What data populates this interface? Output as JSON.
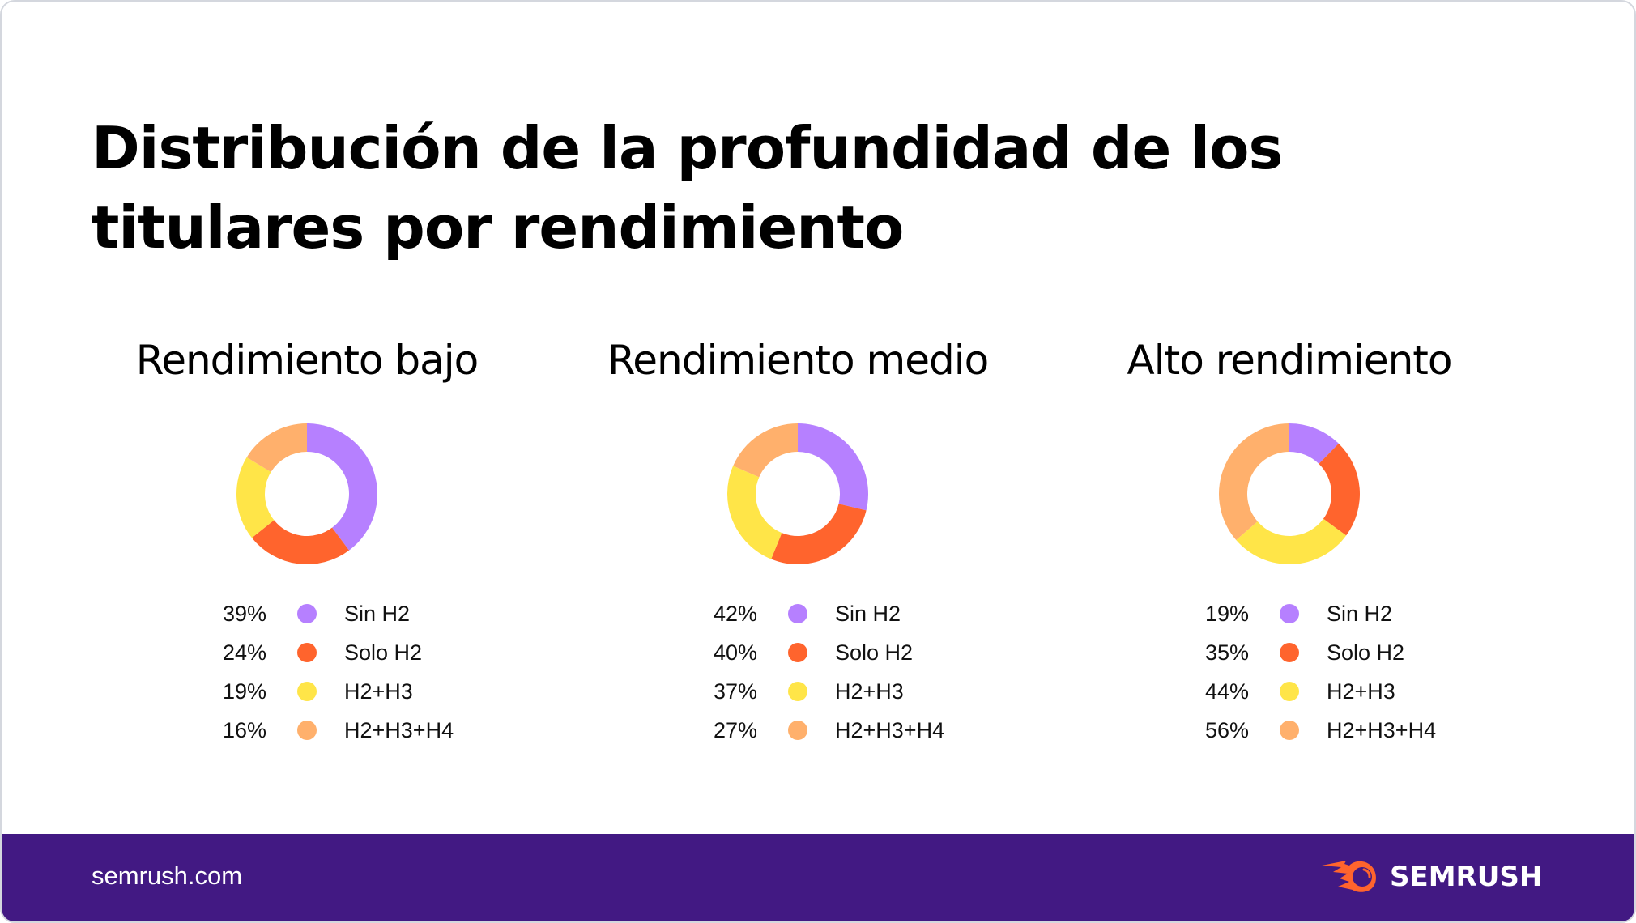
{
  "title": "Distribución de la profundidad de los titulares por rendimiento",
  "colors": {
    "sin_h2": "#b680ff",
    "solo_h2": "#ff642d",
    "h2_h3": "#ffe548",
    "h2_h3_h4": "#ffb06c",
    "footer_bg": "#421983"
  },
  "chart_data": [
    {
      "type": "pie",
      "title": "Rendimiento bajo",
      "categories": [
        "Sin H2",
        "Solo H2",
        "H2+H3",
        "H2+H3+H4"
      ],
      "values": [
        39,
        24,
        19,
        16
      ],
      "labels": [
        "39%",
        "24%",
        "19%",
        "16%"
      ],
      "donut": true,
      "legend": "bottom"
    },
    {
      "type": "pie",
      "title": "Rendimiento medio",
      "categories": [
        "Sin H2",
        "Solo H2",
        "H2+H3",
        "H2+H3+H4"
      ],
      "values": [
        42,
        40,
        37,
        27
      ],
      "labels": [
        "42%",
        "40%",
        "37%",
        "27%"
      ],
      "donut": true,
      "legend": "bottom"
    },
    {
      "type": "pie",
      "title": "Alto rendimiento",
      "categories": [
        "Sin H2",
        "Solo H2",
        "H2+H3",
        "H2+H3+H4"
      ],
      "values": [
        19,
        35,
        44,
        56
      ],
      "labels": [
        "19%",
        "35%",
        "44%",
        "56%"
      ],
      "donut": true,
      "legend": "bottom"
    }
  ],
  "footer": {
    "site": "semrush.com",
    "brand": "SEMRUSH"
  }
}
